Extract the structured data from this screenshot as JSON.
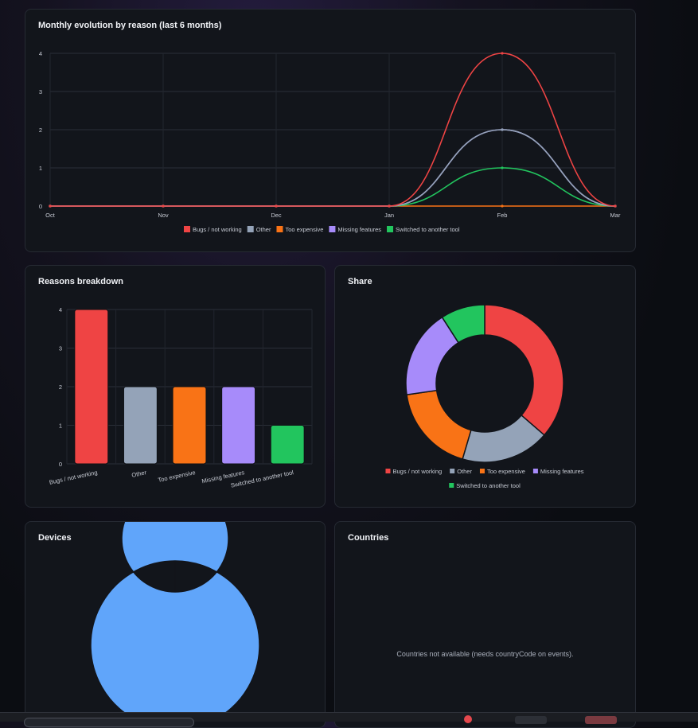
{
  "colors": {
    "Bugs / not working": "#ef4444",
    "Other": "#94a3b8",
    "Too expensive": "#f97316",
    "Missing features": "#a78bfa",
    "Switched to another tool": "#22c55e",
    "Devices": "#60a5fa"
  },
  "evolution": {
    "title": "Monthly evolution by reason (last 6 months)"
  },
  "breakdown": {
    "title": "Reasons breakdown"
  },
  "share": {
    "title": "Share"
  },
  "devices": {
    "title": "Devices"
  },
  "countries": {
    "title": "Countries",
    "empty_message": "Countries not available (needs countryCode on events)."
  },
  "chart_data": [
    {
      "type": "line",
      "title": "Monthly evolution by reason (last 6 months)",
      "x": [
        "Oct",
        "Nov",
        "Dec",
        "Jan",
        "Feb",
        "Mar"
      ],
      "ylim": [
        0,
        4
      ],
      "yticks": [
        0,
        1,
        2,
        3,
        4
      ],
      "grid": true,
      "legend": "bottom",
      "series": [
        {
          "name": "Bugs / not working",
          "values": [
            0,
            0,
            0,
            0,
            4,
            0
          ]
        },
        {
          "name": "Other",
          "values": [
            0,
            0,
            0,
            0,
            2,
            0
          ]
        },
        {
          "name": "Too expensive",
          "values": [
            0,
            0,
            0,
            0,
            0,
            0
          ]
        },
        {
          "name": "Missing features",
          "values": [
            0,
            0,
            0,
            0,
            2,
            0
          ]
        },
        {
          "name": "Switched to another tool",
          "values": [
            0,
            0,
            0,
            0,
            1,
            0
          ]
        }
      ]
    },
    {
      "type": "bar",
      "title": "Reasons breakdown",
      "categories": [
        "Bugs / not working",
        "Other",
        "Too expensive",
        "Missing features",
        "Switched to another tool"
      ],
      "values": [
        4,
        2,
        2,
        2,
        1
      ],
      "ylim": [
        0,
        4
      ],
      "yticks": [
        0,
        1,
        2,
        3,
        4
      ],
      "grid": true
    },
    {
      "type": "pie",
      "title": "Share",
      "donut": true,
      "labels": [
        "Bugs / not working",
        "Other",
        "Too expensive",
        "Missing features",
        "Switched to another tool"
      ],
      "values": [
        4,
        2,
        2,
        2,
        1
      ],
      "legend": "bottom"
    },
    {
      "type": "pie",
      "title": "Devices",
      "donut": true,
      "values": [
        1
      ]
    }
  ]
}
